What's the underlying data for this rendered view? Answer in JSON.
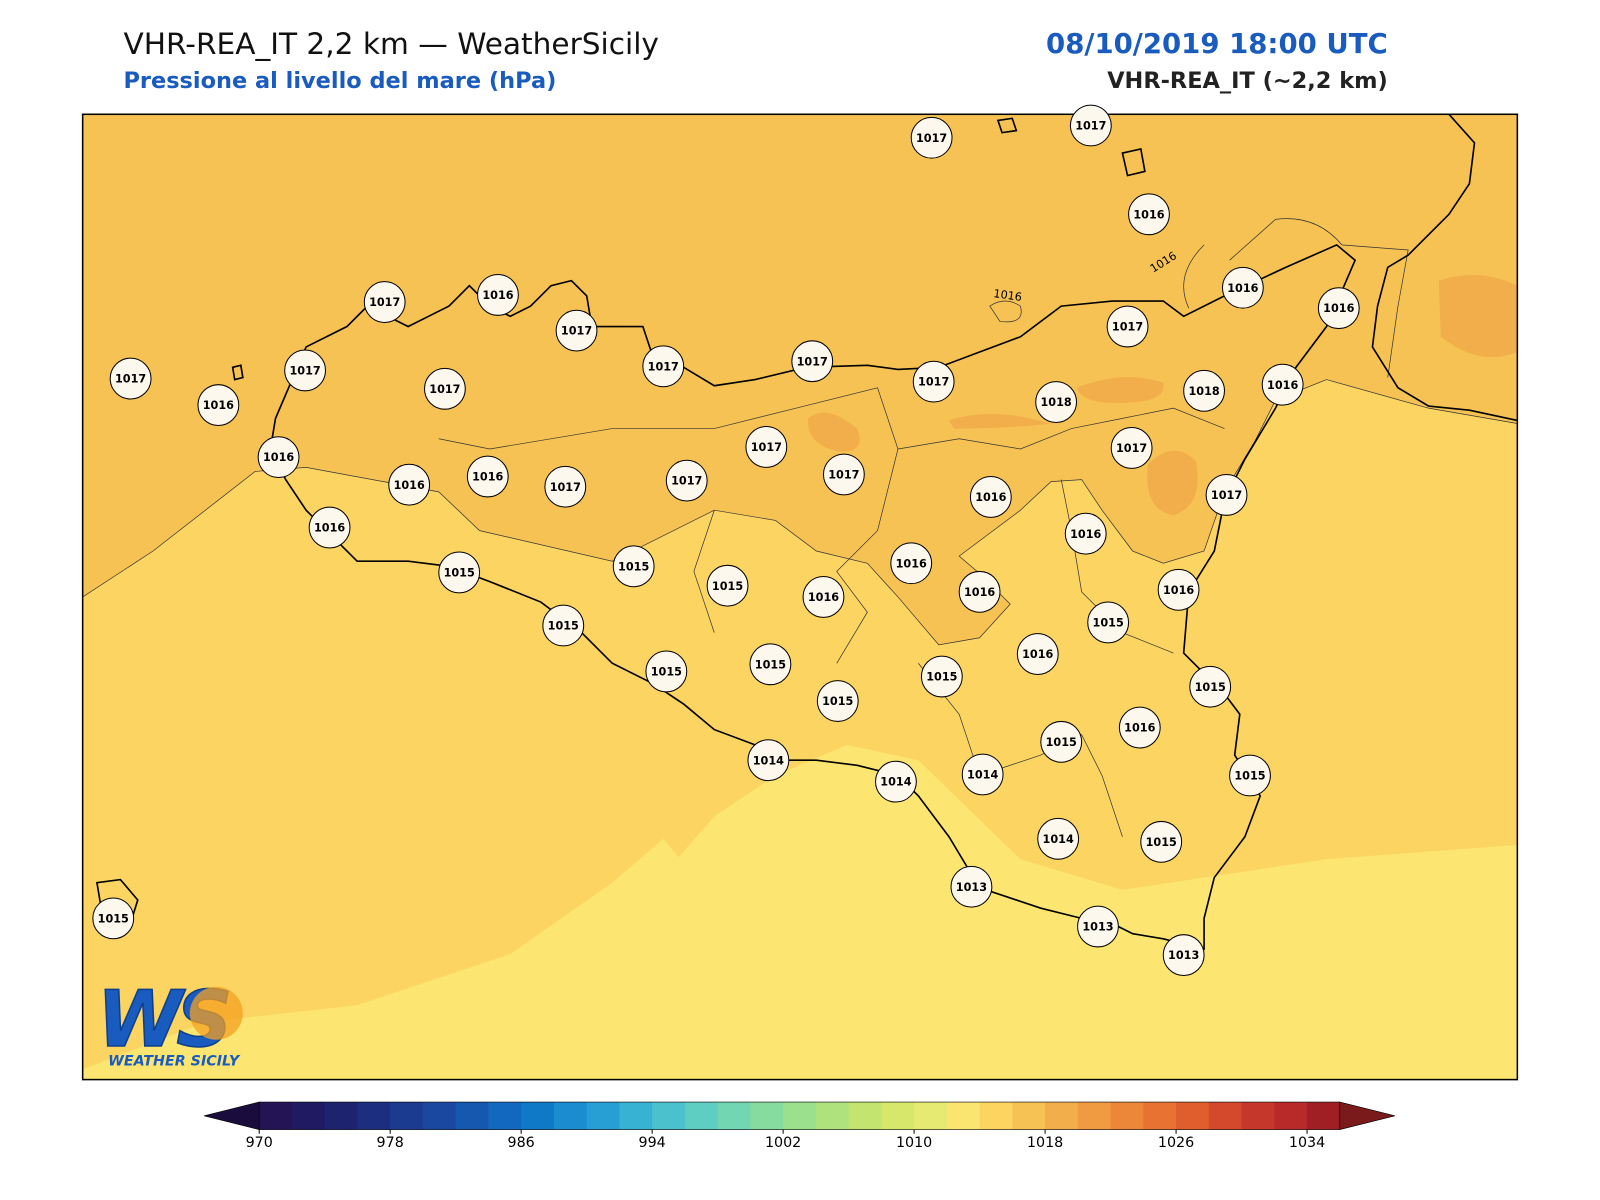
{
  "header": {
    "title": "VHR-REA_IT 2,2 km — WeatherSicily",
    "subtitle": "Pressione al livello del mare (hPa)",
    "datetime": "08/10/2019 18:00 UTC",
    "model": "VHR-REA_IT (~2,2 km)"
  },
  "map": {
    "stations": [
      1017,
      1017,
      1016,
      1016,
      1016,
      1017,
      1017,
      1016,
      1017,
      1017,
      1017,
      1017,
      1018,
      1018,
      1016,
      1017,
      1017,
      1016,
      1017,
      1017,
      1017,
      1016,
      1016,
      1016,
      1017,
      1017,
      1017,
      1016,
      1017,
      1016,
      1016,
      1015,
      1015,
      1016,
      1015,
      1016,
      1016,
      1016,
      1015,
      1015,
      1016,
      1015,
      1015,
      1015,
      1015,
      1015,
      1016,
      1015,
      1014,
      1014,
      1014,
      1015,
      1014,
      1015,
      1013,
      1015,
      1013,
      1013
    ],
    "contour_labels": [
      1016,
      1016
    ]
  },
  "colorbar": {
    "range": [
      970,
      1036
    ],
    "ticks": [
      970,
      978,
      986,
      994,
      1002,
      1010,
      1018,
      1026,
      1034
    ],
    "colors": [
      "#241456",
      "#1f1a62",
      "#1e236f",
      "#1c2e80",
      "#1b3b90",
      "#1a48a0",
      "#1657b0",
      "#1268be",
      "#0f79c8",
      "#1a8ccf",
      "#289fd4",
      "#38b2d3",
      "#4bc1cd",
      "#5ecdc2",
      "#72d6b2",
      "#86dc9f",
      "#9be08d",
      "#afe27c",
      "#c3e46f",
      "#d6e76c",
      "#e6ea72",
      "#fbe571",
      "#fcd45f",
      "#f6c254",
      "#f2ae4a",
      "#f09b42",
      "#ec873a",
      "#e87232",
      "#e05e2e",
      "#d4492c",
      "#c6372b",
      "#b8292a",
      "#a01f24"
    ],
    "extend_colors": [
      "#1a0d3e",
      "#7a1a1a"
    ]
  },
  "logo": {
    "mark": "WS",
    "text": "WEATHER SICILY"
  }
}
